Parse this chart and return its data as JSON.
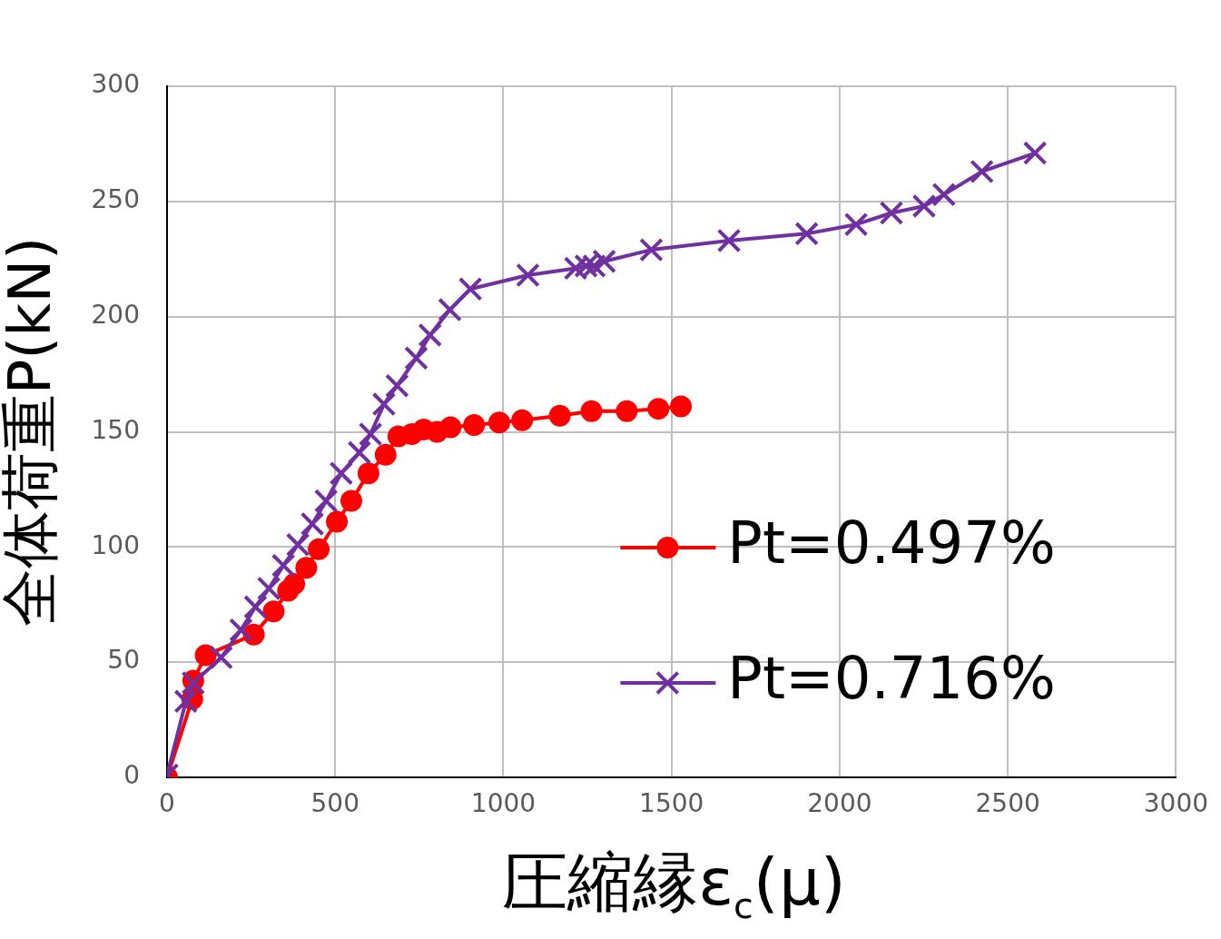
{
  "chart_data": {
    "type": "line",
    "xlabel": "圧縮縁ε$_{c}$(μ)",
    "ylabel": "全体荷重P(kN)",
    "xlim": [
      0,
      3000
    ],
    "xticks": [
      0,
      500,
      1000,
      1500,
      2000,
      2500,
      3000
    ],
    "ylim": [
      0,
      300
    ],
    "yticks": [
      0,
      50,
      100,
      150,
      200,
      250,
      300
    ],
    "grid": true,
    "legend": "right",
    "line_style": "solid",
    "series": [
      {
        "name": "Pt=0.497%",
        "color": "#ff0000",
        "marker": "circle",
        "x": [
          0,
          75,
          78,
          115,
          258,
          317,
          360,
          378,
          414,
          451,
          505,
          548,
          599,
          650,
          688,
          728,
          763,
          803,
          843,
          913,
          988,
          1056,
          1168,
          1262,
          1367,
          1461,
          1528
        ],
        "values": [
          0,
          34,
          42,
          53,
          62,
          72,
          81,
          84,
          91,
          99,
          111,
          120,
          132,
          140,
          148,
          149,
          151,
          150,
          152,
          153,
          154,
          155,
          157,
          159,
          159,
          160,
          161
        ]
      },
      {
        "name": "Pt=0.716%",
        "color": "#7030a0",
        "marker": "cross",
        "x": [
          0,
          56,
          78,
          161,
          220,
          263,
          303,
          346,
          389,
          432,
          473,
          518,
          572,
          605,
          645,
          684,
          741,
          782,
          841,
          902,
          1073,
          1215,
          1246,
          1270,
          1300,
          1440,
          1671,
          1902,
          2049,
          2154,
          2251,
          2310,
          2423,
          2581
        ],
        "values": [
          1,
          33,
          41,
          52,
          64,
          74,
          82,
          92,
          101,
          110,
          120,
          132,
          141,
          149,
          162,
          170,
          182,
          192,
          203,
          212,
          218,
          221,
          222,
          222,
          224,
          229,
          233,
          236,
          240,
          245,
          248,
          253,
          263,
          271
        ]
      }
    ]
  }
}
